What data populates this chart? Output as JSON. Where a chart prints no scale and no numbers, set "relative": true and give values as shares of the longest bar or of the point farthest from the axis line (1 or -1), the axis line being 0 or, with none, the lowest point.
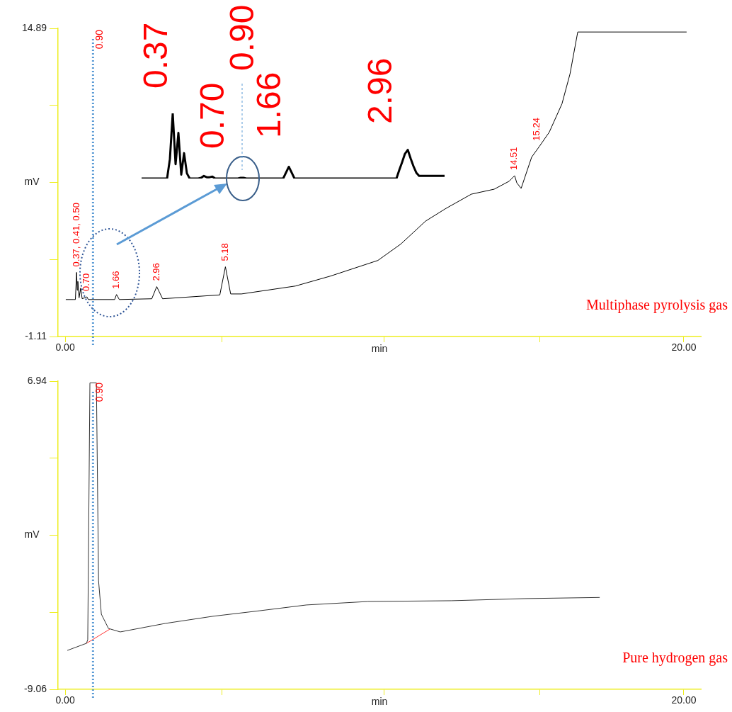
{
  "chart_data": [
    {
      "type": "line",
      "xlabel": "min",
      "ylabel": "mV",
      "xlim": [
        -0.23,
        20.55
      ],
      "ylim": [
        -1.11,
        14.89
      ],
      "xticks": [
        {
          "value": 0,
          "label": "0.00"
        },
        {
          "value": 5.06,
          "label": null
        },
        {
          "value": 10.32,
          "label": null
        },
        {
          "value": 15.35,
          "label": null
        },
        {
          "value": 20,
          "label": "20.00"
        }
      ],
      "yticks": [
        -1.11,
        {
          "value": 2.89,
          "label": null
        },
        {
          "value": 6.89,
          "label": null
        },
        {
          "value": 10.89,
          "label": null
        },
        14.89
      ],
      "series": [
        {
          "color": "#000000",
          "x": [
            0.02,
            0.27,
            0.33,
            0.37,
            0.39,
            0.41,
            0.45,
            0.5,
            0.55,
            0.7,
            0.75,
            1.6,
            1.66,
            1.75,
            2.8,
            2.96,
            3.15,
            5.0,
            5.18,
            5.35,
            5.7,
            7.44,
            8.58,
            10.11,
            10.85,
            11.65,
            12.31,
            13.13,
            13.87,
            14.35,
            14.53,
            14.6,
            14.74,
            15.08,
            15.33,
            15.65,
            16.06,
            16.32,
            16.57,
            20.09
          ],
          "values": [
            0.81,
            0.81,
            0.81,
            2.22,
            1.3,
            1.75,
            0.9,
            1.4,
            0.85,
            0.95,
            0.81,
            0.81,
            1.07,
            0.81,
            0.85,
            1.48,
            0.85,
            1.05,
            2.51,
            1.1,
            1.1,
            1.51,
            2.03,
            2.84,
            3.69,
            4.88,
            5.54,
            6.28,
            6.54,
            6.95,
            7.24,
            6.87,
            6.58,
            8.2,
            8.76,
            9.5,
            10.97,
            12.52,
            14.7,
            14.7
          ]
        }
      ],
      "ref_lines": [
        {
          "axis": "x",
          "value": 0.9,
          "label": "0.90",
          "color": "#5b9bd5",
          "line_style": "dotted"
        }
      ],
      "annotations": [
        {
          "text": "0.37, 0.41, 0.50",
          "x": 0.37,
          "y": 2.22
        },
        {
          "text": "0.70",
          "x": 0.7,
          "y": 0.95
        },
        {
          "text": "1.66",
          "x": 1.66,
          "y": 1.07
        },
        {
          "text": "2.96",
          "x": 2.96,
          "y": 1.48
        },
        {
          "text": "5.18",
          "x": 5.18,
          "y": 2.51
        },
        {
          "text": "14.51",
          "x": 14.51,
          "y": 7.24
        },
        {
          "text": "15.24",
          "x": 15.24,
          "y": 8.76
        },
        "Multiphase pyrolysis gas"
      ]
    },
    {
      "type": "line",
      "relative": true,
      "categories": [
        null,
        null,
        null,
        null,
        null,
        null,
        null,
        null,
        null,
        null,
        null,
        null,
        null,
        null,
        null,
        null,
        null,
        null,
        null,
        null,
        null,
        null,
        null,
        null,
        null,
        null,
        null,
        null,
        null,
        null,
        null,
        null,
        null,
        null,
        null,
        null,
        null,
        null,
        null,
        null,
        null,
        null,
        null,
        null,
        null,
        null,
        null,
        null,
        null,
        null,
        null,
        null,
        null,
        null,
        null,
        null,
        null,
        null,
        null,
        null,
        null,
        null,
        null,
        null,
        null,
        null,
        null,
        null,
        null,
        null,
        null,
        null,
        null,
        null,
        null,
        null,
        null,
        null,
        null,
        null,
        null,
        null,
        null,
        null,
        null,
        null,
        null,
        null,
        null,
        null,
        null,
        null,
        null,
        null,
        null,
        null,
        null,
        null,
        null,
        null,
        null,
        null,
        null,
        null,
        null,
        null,
        null,
        null
      ],
      "series": [
        {
          "color": "#000000",
          "values": [
            0,
            0,
            0,
            0,
            0,
            0,
            0,
            0,
            0,
            0,
            0.3,
            1,
            0.22,
            0.7,
            0.06,
            0.39,
            0.08,
            0,
            0,
            0,
            0,
            0.01,
            0.04,
            0.02,
            0.02,
            0.03,
            0,
            0,
            0,
            0,
            0,
            0,
            0,
            0,
            0,
            0.01,
            0.01,
            0,
            0,
            0,
            0,
            0,
            0,
            0,
            0,
            0,
            0,
            0,
            0,
            0,
            0,
            0.09,
            0.18,
            0.09,
            0,
            0,
            0,
            0,
            0,
            0,
            0,
            0,
            0,
            0,
            0,
            0,
            0,
            0,
            0,
            0,
            0,
            0,
            0,
            0,
            0,
            0,
            0,
            0,
            0,
            0,
            0,
            0,
            0,
            0,
            0,
            0,
            0,
            0,
            0,
            0,
            0,
            0.13,
            0.25,
            0.38,
            0.44,
            0.31,
            0.19,
            0.09,
            0.04,
            0.04,
            0.04,
            0.04,
            0.04,
            0.04,
            0.04,
            0.04,
            0.04,
            0.04
          ]
        }
      ],
      "annotations": [
        "0.37",
        "0.70",
        "0.90",
        "1.66",
        "2.96"
      ]
    },
    {
      "type": "line",
      "xlabel": "min",
      "ylabel": "mV",
      "xlim": [
        -0.23,
        20.55
      ],
      "ylim": [
        -9.06,
        6.94
      ],
      "xticks": [
        {
          "value": 0,
          "label": "0.00"
        },
        {
          "value": 5.06,
          "label": null
        },
        {
          "value": 10.32,
          "label": null
        },
        {
          "value": 15.35,
          "label": null
        },
        {
          "value": 20,
          "label": "20.00"
        }
      ],
      "yticks": [
        -9.06,
        {
          "value": -5.06,
          "label": null
        },
        {
          "value": -1.06,
          "label": null
        },
        {
          "value": 2.94,
          "label": null
        },
        6.94
      ],
      "series": [
        {
          "color": "#333333",
          "x": [
            0.07,
            0.69,
            0.73,
            0.8,
            1.01,
            1.08,
            1.17,
            1.4,
            1.78,
            3.23,
            4.76,
            6.29,
            7.8,
            9.79,
            12.49,
            14.85,
            17.28
          ],
          "values": [
            -7.04,
            -6.67,
            -6.48,
            6.85,
            6.85,
            -3.43,
            -5.16,
            -5.9,
            -6.08,
            -5.64,
            -5.27,
            -4.98,
            -4.68,
            -4.5,
            -4.46,
            -4.35,
            -4.29
          ]
        },
        {
          "color": "#ff3333",
          "x": [
            0.69,
            1.44
          ],
          "values": [
            -6.67,
            -5.94
          ]
        }
      ],
      "ref_lines": [
        {
          "axis": "x",
          "value": 0.9,
          "label": "0.90",
          "color": "#5b9bd5",
          "line_style": "dotted"
        }
      ],
      "annotations": [
        "Pure hydrogen gas"
      ]
    }
  ]
}
